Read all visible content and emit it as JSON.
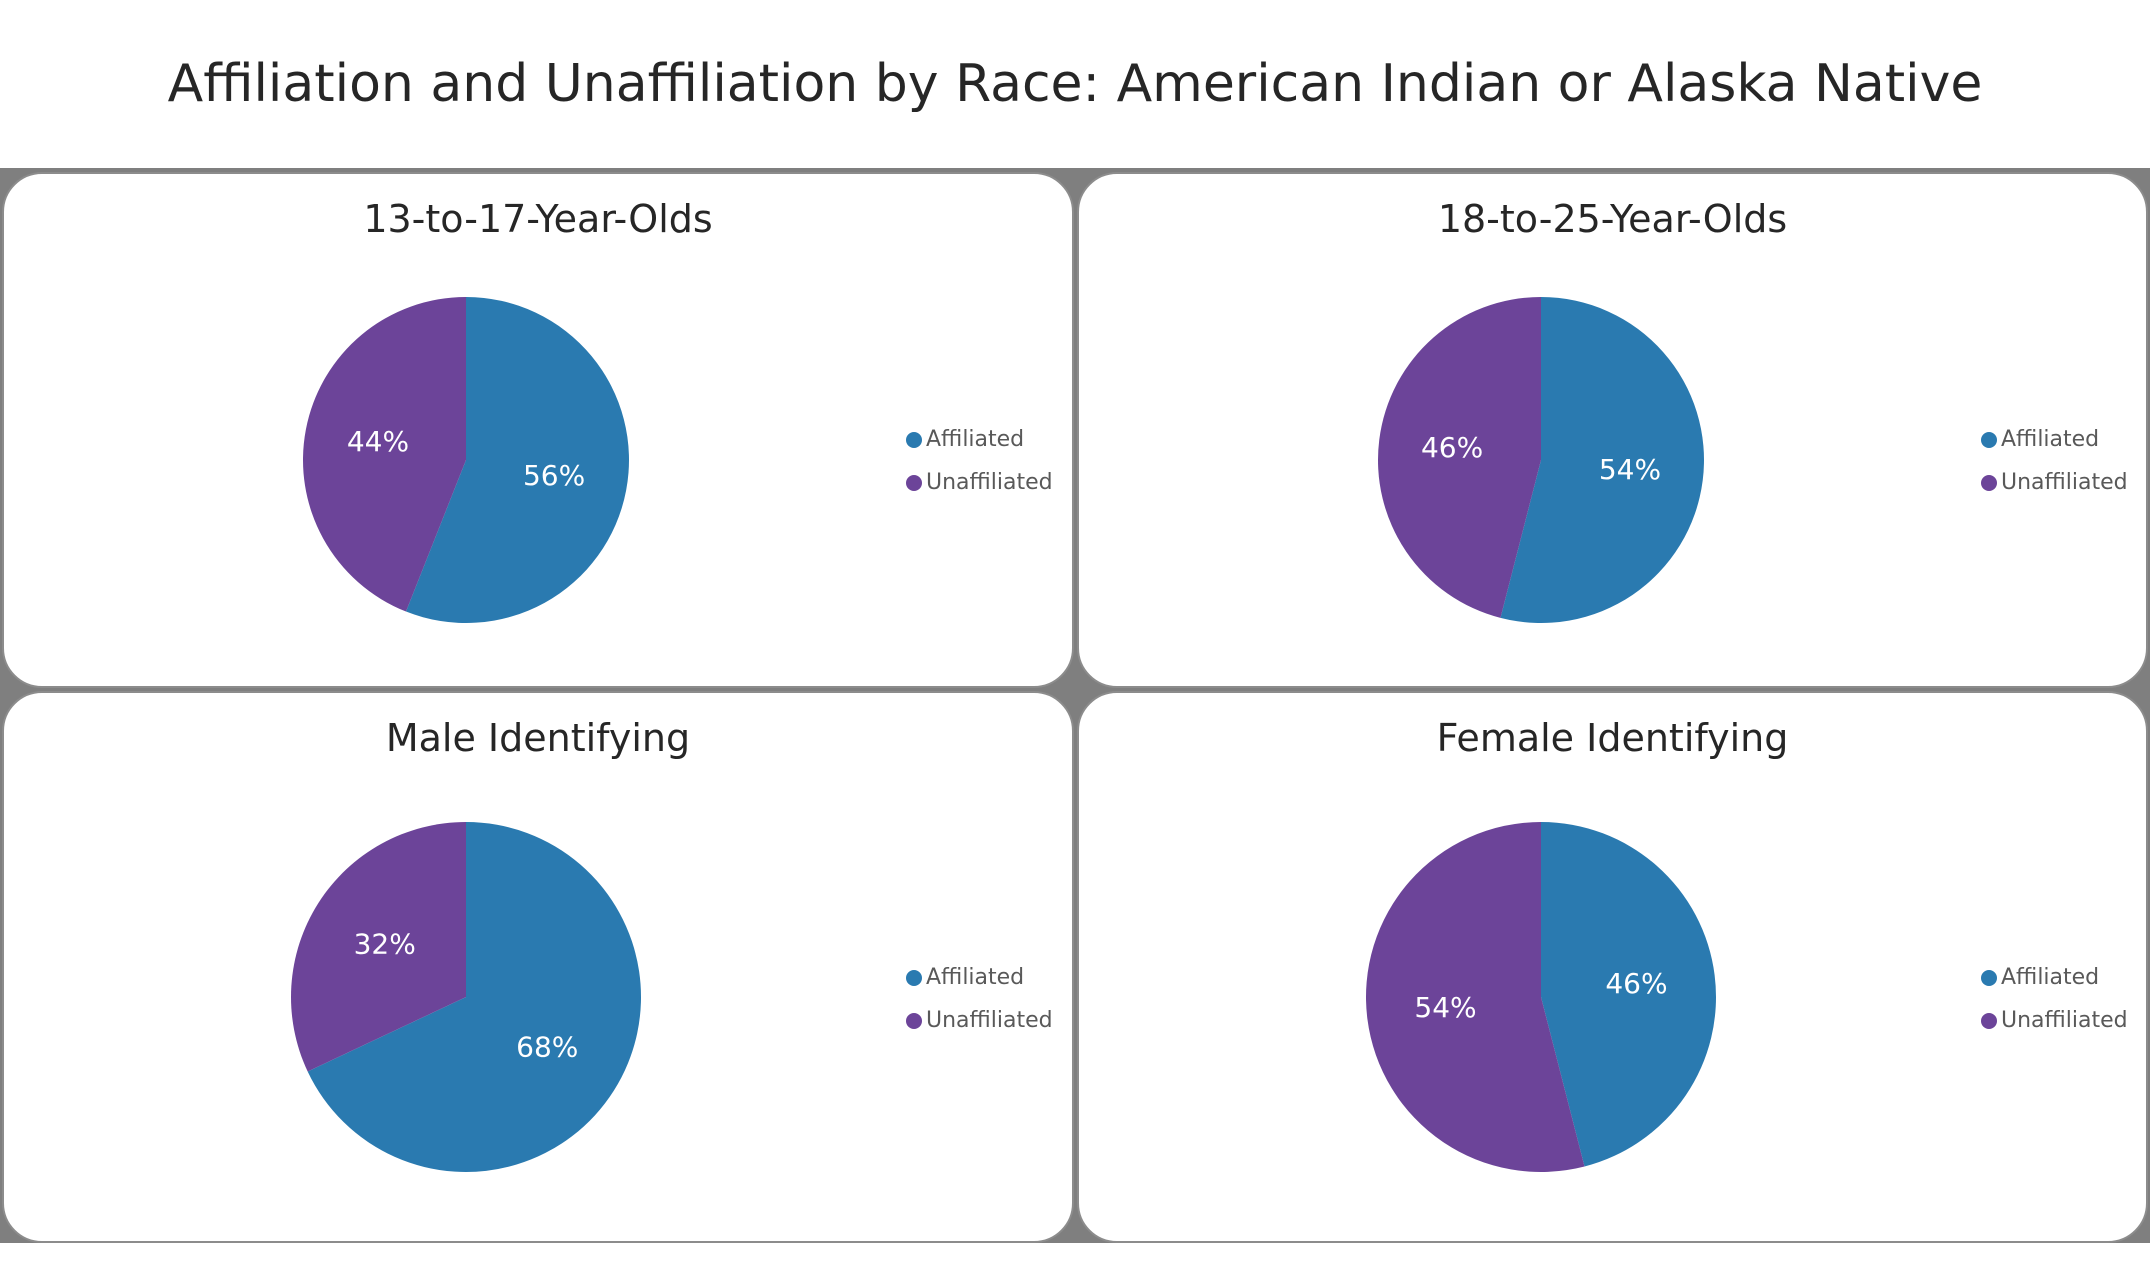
{
  "title": "Affiliation and Unaffiliation by Race: American Indian or Alaska Native",
  "colors": {
    "affiliated": "#2a7ab0",
    "unaffiliated": "#6c4499"
  },
  "chart_data": [
    {
      "type": "pie",
      "title": "13-to-17-Year-Olds",
      "categories": [
        "Affiliated",
        "Unaffiliated"
      ],
      "values": [
        56,
        44
      ],
      "labels": [
        "56%",
        "44%"
      ],
      "legend": "right"
    },
    {
      "type": "pie",
      "title": "18-to-25-Year-Olds",
      "categories": [
        "Affiliated",
        "Unaffiliated"
      ],
      "values": [
        54,
        46
      ],
      "labels": [
        "54%",
        "46%"
      ],
      "legend": "right"
    },
    {
      "type": "pie",
      "title": "Male Identifying",
      "categories": [
        "Affiliated",
        "Unaffiliated"
      ],
      "values": [
        68,
        32
      ],
      "labels": [
        "68%",
        "32%"
      ],
      "legend": "right"
    },
    {
      "type": "pie",
      "title": "Female Identifying",
      "categories": [
        "Affiliated",
        "Unaffiliated"
      ],
      "values": [
        46,
        54
      ],
      "labels": [
        "46%",
        "54%"
      ],
      "legend": "right"
    }
  ]
}
